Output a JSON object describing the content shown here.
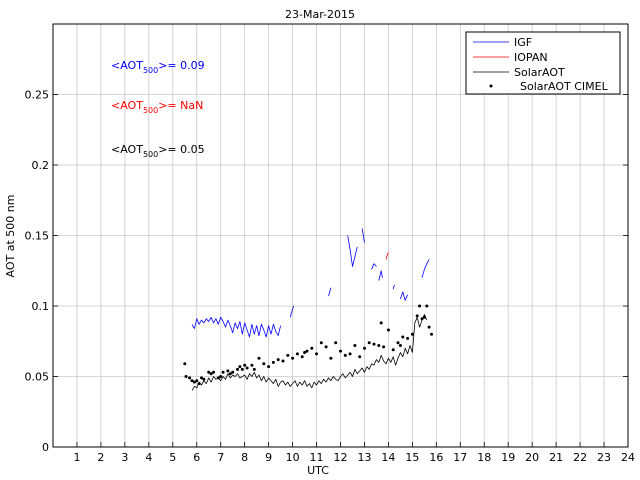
{
  "chart_data": {
    "type": "line",
    "title": "23-Mar-2015",
    "xlabel": "UTC",
    "ylabel": "AOT at 500 nm",
    "xlim": [
      0,
      24
    ],
    "ylim": [
      0,
      0.3
    ],
    "xticks": [
      1,
      2,
      3,
      4,
      5,
      6,
      7,
      8,
      9,
      10,
      11,
      12,
      13,
      14,
      15,
      16,
      17,
      18,
      19,
      20,
      21,
      22,
      23,
      24
    ],
    "yticks": [
      0,
      0.05,
      0.1,
      0.15,
      0.2,
      0.25
    ],
    "ytick_labels": [
      "0",
      "0.05",
      "0.1",
      "0.15",
      "0.2",
      "0.25"
    ],
    "grid": true,
    "legend": {
      "position": "top-right",
      "entries": [
        {
          "label": "IGF",
          "color": "#0000ff",
          "marker": "line"
        },
        {
          "label": "IOPAN",
          "color": "#ff0000",
          "marker": "line"
        },
        {
          "label": "SolarAOT",
          "color": "#000000",
          "marker": "line"
        },
        {
          "label": "SolarAOT CIMEL",
          "color": "#000000",
          "marker": "dot"
        }
      ]
    },
    "annotations": [
      {
        "prefix": "<AOT",
        "sub": "500",
        "suffix": ">= 0.09",
        "color": "#0000ff"
      },
      {
        "prefix": "<AOT",
        "sub": "500",
        "suffix": ">=  NaN",
        "color": "#ff0000"
      },
      {
        "prefix": "<AOT",
        "sub": "500",
        "suffix": ">= 0.05",
        "color": "#000000"
      }
    ],
    "series": [
      {
        "name": "IGF",
        "color": "#0000ff",
        "style": "line",
        "segments": [
          {
            "x": [
              5.8,
              5.9,
              6.0,
              6.1,
              6.2,
              6.3,
              6.4,
              6.5,
              6.6,
              6.7,
              6.8,
              6.9,
              7.0,
              7.1,
              7.2,
              7.3,
              7.4,
              7.5,
              7.6,
              7.7,
              7.8,
              7.9,
              8.0,
              8.1,
              8.2,
              8.3,
              8.4,
              8.5,
              8.6,
              8.7,
              8.8,
              8.9,
              9.0,
              9.1,
              9.2,
              9.3,
              9.4,
              9.5
            ],
            "y": [
              0.087,
              0.084,
              0.091,
              0.087,
              0.09,
              0.088,
              0.091,
              0.089,
              0.092,
              0.088,
              0.091,
              0.087,
              0.092,
              0.089,
              0.085,
              0.09,
              0.086,
              0.081,
              0.088,
              0.084,
              0.089,
              0.08,
              0.088,
              0.083,
              0.078,
              0.087,
              0.08,
              0.086,
              0.079,
              0.087,
              0.083,
              0.078,
              0.086,
              0.08,
              0.087,
              0.082,
              0.079,
              0.086
            ]
          },
          {
            "x": [
              9.9,
              9.95,
              10.0,
              10.05
            ],
            "y": [
              0.092,
              0.095,
              0.098,
              0.1
            ]
          },
          {
            "x": [
              11.5,
              11.55,
              11.6
            ],
            "y": [
              0.107,
              0.11,
              0.113
            ]
          },
          {
            "x": [
              12.3,
              12.4,
              12.5,
              12.6,
              12.7
            ],
            "y": [
              0.15,
              0.14,
              0.128,
              0.135,
              0.142
            ]
          },
          {
            "x": [
              12.9,
              12.95,
              13.0
            ],
            "y": [
              0.155,
              0.15,
              0.145
            ]
          },
          {
            "x": [
              13.3,
              13.4,
              13.5
            ],
            "y": [
              0.126,
              0.13,
              0.128
            ]
          },
          {
            "x": [
              13.6,
              13.7,
              13.75
            ],
            "y": [
              0.118,
              0.125,
              0.12
            ]
          },
          {
            "x": [
              14.2,
              14.25
            ],
            "y": [
              0.112,
              0.115
            ]
          },
          {
            "x": [
              14.5,
              14.6,
              14.7,
              14.8
            ],
            "y": [
              0.105,
              0.11,
              0.104,
              0.108
            ]
          },
          {
            "x": [
              15.4,
              15.5,
              15.6,
              15.7
            ],
            "y": [
              0.12,
              0.126,
              0.13,
              0.133
            ]
          }
        ]
      },
      {
        "name": "IOPAN",
        "color": "#ff0000",
        "style": "line",
        "segments": [
          {
            "x": [
              13.9,
              13.95,
              14.0
            ],
            "y": [
              0.133,
              0.136,
              0.138
            ]
          }
        ]
      },
      {
        "name": "SolarAOT",
        "color": "#000000",
        "style": "line",
        "segments": [
          {
            "x": [
              5.8,
              5.9,
              6.0,
              6.1,
              6.2,
              6.3,
              6.4,
              6.5,
              6.6,
              6.7,
              6.8,
              6.9,
              7.0,
              7.1,
              7.2,
              7.3,
              7.4,
              7.5,
              7.6,
              7.7,
              7.8,
              7.9,
              8.0,
              8.1,
              8.2,
              8.3,
              8.4,
              8.5,
              8.6,
              8.7,
              8.8,
              8.9,
              9.0,
              9.1,
              9.2,
              9.3,
              9.4,
              9.5,
              9.6,
              9.7,
              9.8,
              9.9,
              10.0,
              10.1,
              10.2,
              10.3,
              10.4,
              10.5,
              10.6,
              10.7,
              10.8,
              10.9,
              11.0,
              11.1,
              11.2,
              11.3,
              11.4,
              11.5,
              11.6,
              11.7,
              11.8,
              11.9,
              12.0,
              12.1,
              12.2,
              12.3,
              12.4,
              12.5,
              12.6,
              12.7,
              12.8,
              12.9,
              13.0,
              13.1,
              13.2,
              13.3,
              13.4,
              13.5,
              13.6,
              13.7,
              13.8,
              13.9,
              14.0,
              14.1,
              14.2,
              14.3,
              14.4,
              14.5,
              14.6,
              14.7,
              14.8,
              14.9,
              15.0,
              15.1,
              15.2,
              15.3,
              15.4,
              15.5,
              15.6
            ],
            "y": [
              0.04,
              0.043,
              0.042,
              0.046,
              0.044,
              0.047,
              0.045,
              0.049,
              0.046,
              0.05,
              0.048,
              0.049,
              0.047,
              0.05,
              0.048,
              0.052,
              0.049,
              0.051,
              0.05,
              0.052,
              0.049,
              0.05,
              0.051,
              0.048,
              0.052,
              0.05,
              0.053,
              0.049,
              0.051,
              0.047,
              0.05,
              0.046,
              0.049,
              0.047,
              0.045,
              0.048,
              0.043,
              0.046,
              0.047,
              0.044,
              0.046,
              0.043,
              0.045,
              0.047,
              0.043,
              0.046,
              0.044,
              0.047,
              0.043,
              0.045,
              0.042,
              0.046,
              0.044,
              0.047,
              0.045,
              0.048,
              0.046,
              0.049,
              0.047,
              0.05,
              0.048,
              0.047,
              0.05,
              0.052,
              0.049,
              0.051,
              0.053,
              0.05,
              0.055,
              0.052,
              0.054,
              0.056,
              0.053,
              0.057,
              0.055,
              0.059,
              0.058,
              0.062,
              0.06,
              0.065,
              0.061,
              0.059,
              0.063,
              0.06,
              0.064,
              0.058,
              0.063,
              0.067,
              0.064,
              0.07,
              0.066,
              0.072,
              0.067,
              0.088,
              0.092,
              0.085,
              0.09,
              0.094,
              0.09
            ]
          }
        ]
      },
      {
        "name": "SolarAOT CIMEL",
        "color": "#000000",
        "style": "dots",
        "x": [
          5.5,
          5.55,
          5.7,
          5.8,
          5.9,
          6.0,
          6.1,
          6.2,
          6.3,
          6.5,
          6.6,
          6.7,
          6.9,
          7.0,
          7.1,
          7.3,
          7.4,
          7.5,
          7.7,
          7.8,
          7.9,
          8.0,
          8.1,
          8.3,
          8.4,
          8.6,
          8.8,
          9.0,
          9.2,
          9.4,
          9.6,
          9.8,
          10.0,
          10.2,
          10.4,
          10.5,
          10.6,
          10.8,
          11.0,
          11.2,
          11.4,
          11.6,
          11.8,
          12.0,
          12.2,
          12.4,
          12.6,
          12.8,
          13.0,
          13.2,
          13.4,
          13.6,
          13.7,
          13.8,
          14.0,
          14.2,
          14.4,
          14.5,
          14.6,
          14.8,
          15.0,
          15.2,
          15.3,
          15.4,
          15.5,
          15.6,
          15.7,
          15.8
        ],
        "y": [
          0.059,
          0.05,
          0.049,
          0.047,
          0.046,
          0.047,
          0.045,
          0.049,
          0.048,
          0.053,
          0.052,
          0.053,
          0.049,
          0.05,
          0.053,
          0.054,
          0.052,
          0.053,
          0.055,
          0.057,
          0.055,
          0.058,
          0.056,
          0.058,
          0.055,
          0.063,
          0.059,
          0.057,
          0.06,
          0.062,
          0.061,
          0.065,
          0.063,
          0.066,
          0.064,
          0.067,
          0.068,
          0.07,
          0.066,
          0.074,
          0.071,
          0.063,
          0.074,
          0.068,
          0.065,
          0.066,
          0.072,
          0.064,
          0.07,
          0.074,
          0.073,
          0.072,
          0.088,
          0.071,
          0.083,
          0.069,
          0.074,
          0.072,
          0.078,
          0.077,
          0.08,
          0.093,
          0.1,
          0.091,
          0.092,
          0.1,
          0.085,
          0.08
        ]
      }
    ]
  }
}
